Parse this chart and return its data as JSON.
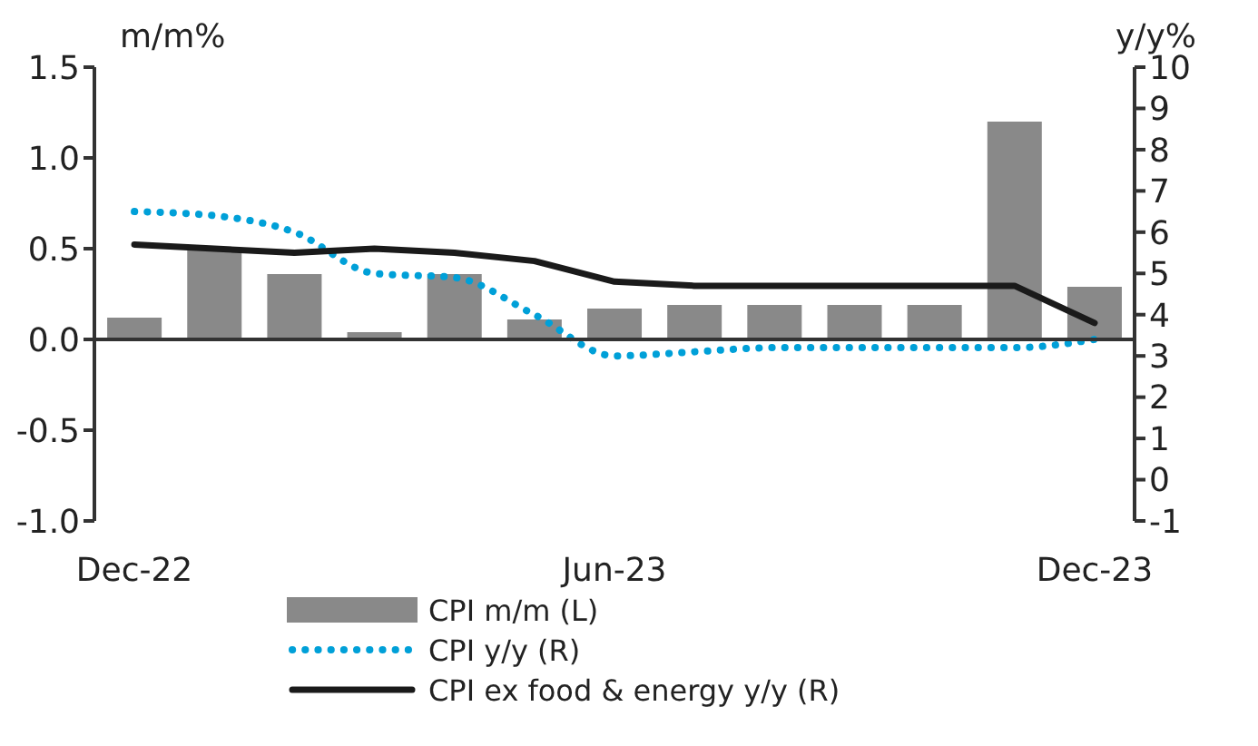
{
  "chart_data": {
    "type": "bar",
    "ylabel": "m/m%",
    "y2label": "y/y%",
    "categories": [
      "Dec-22",
      null,
      null,
      null,
      null,
      null,
      "Jun-23",
      null,
      null,
      null,
      null,
      null,
      "Dec-23"
    ],
    "series": [
      {
        "name": "CPI m/m (L)",
        "color": "#898989",
        "values": [
          0.12,
          0.49,
          0.36,
          0.04,
          0.36,
          0.11,
          0.17,
          0.19,
          0.19,
          0.19,
          0.19,
          1.2,
          0.29
        ]
      },
      {
        "name": "CPI y/y (R)",
        "type": "line",
        "axis": "y2",
        "line_style": "dotted",
        "color": "#00a0d8",
        "values": [
          6.5,
          6.4,
          6.0,
          5.0,
          4.9,
          4.0,
          3.0,
          3.1,
          3.2,
          3.2,
          3.2,
          3.2,
          3.4
        ]
      },
      {
        "name": "CPI ex food & energy y/y (R)",
        "type": "line",
        "axis": "y2",
        "line_style": "solid",
        "color": "#1a1a1a",
        "values": [
          5.7,
          5.6,
          5.5,
          5.6,
          5.5,
          5.3,
          4.8,
          4.7,
          4.7,
          4.7,
          4.7,
          4.7,
          3.8
        ]
      }
    ],
    "ylim": [
      -1.0,
      1.5
    ],
    "yticks": [
      {
        "value": -1,
        "label": "-1.0"
      },
      {
        "value": -0.5,
        "label": "-0.5"
      },
      {
        "value": 0,
        "label": "0.0"
      },
      {
        "value": 0.5,
        "label": "0.5"
      },
      {
        "value": 1,
        "label": "1.0"
      },
      {
        "value": 1.5,
        "label": "1.5"
      }
    ],
    "y2lim": [
      -1,
      10
    ],
    "y2ticks": [
      -1,
      0,
      1,
      2,
      3,
      4,
      5,
      6,
      7,
      8,
      9,
      10
    ],
    "ref_lines": [
      {
        "axis": "y",
        "value": 0
      }
    ],
    "grid": false,
    "legend": "bottom",
    "marker": "none"
  }
}
